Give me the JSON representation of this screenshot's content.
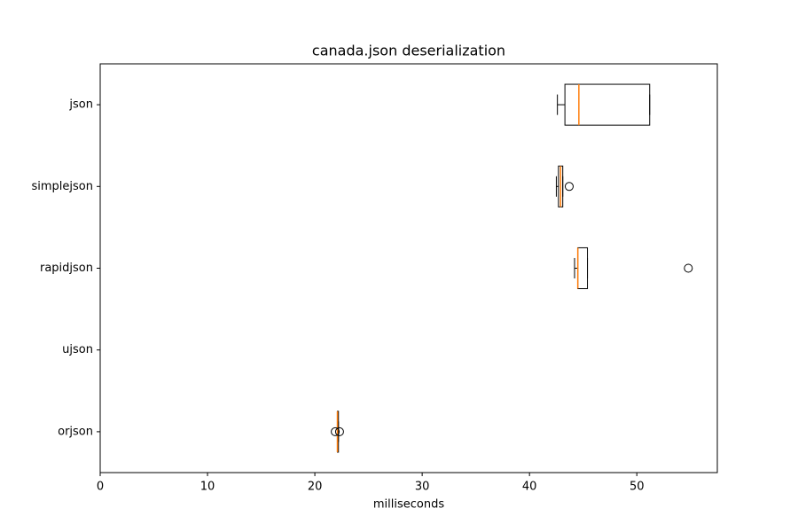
{
  "chart_data": {
    "type": "boxplot",
    "orientation": "horizontal",
    "title": "canada.json deserialization",
    "xlabel": "milliseconds",
    "categories": [
      "orjson",
      "ujson",
      "rapidjson",
      "simplejson",
      "json"
    ],
    "boxes": [
      {
        "low": 22.1,
        "q1": 22.1,
        "median": 22.1,
        "q3": 22.2,
        "high": 22.2,
        "outliers": [
          21.9,
          22.3
        ]
      },
      null,
      {
        "low": 44.2,
        "q1": 44.5,
        "median": 44.5,
        "q3": 45.4,
        "high": 45.4,
        "outliers": [
          54.8
        ]
      },
      {
        "low": 42.5,
        "q1": 42.7,
        "median": 42.9,
        "q3": 43.1,
        "high": 43.1,
        "outliers": [
          43.7
        ]
      },
      {
        "low": 42.6,
        "q1": 43.3,
        "median": 44.6,
        "q3": 51.2,
        "high": 51.2,
        "outliers": []
      }
    ],
    "color": "#000000",
    "median_color": "#ff7f0e",
    "xlim": [
      0,
      57.5
    ],
    "xticks": [
      0,
      10,
      20,
      30,
      40,
      50
    ],
    "grid": false
  }
}
